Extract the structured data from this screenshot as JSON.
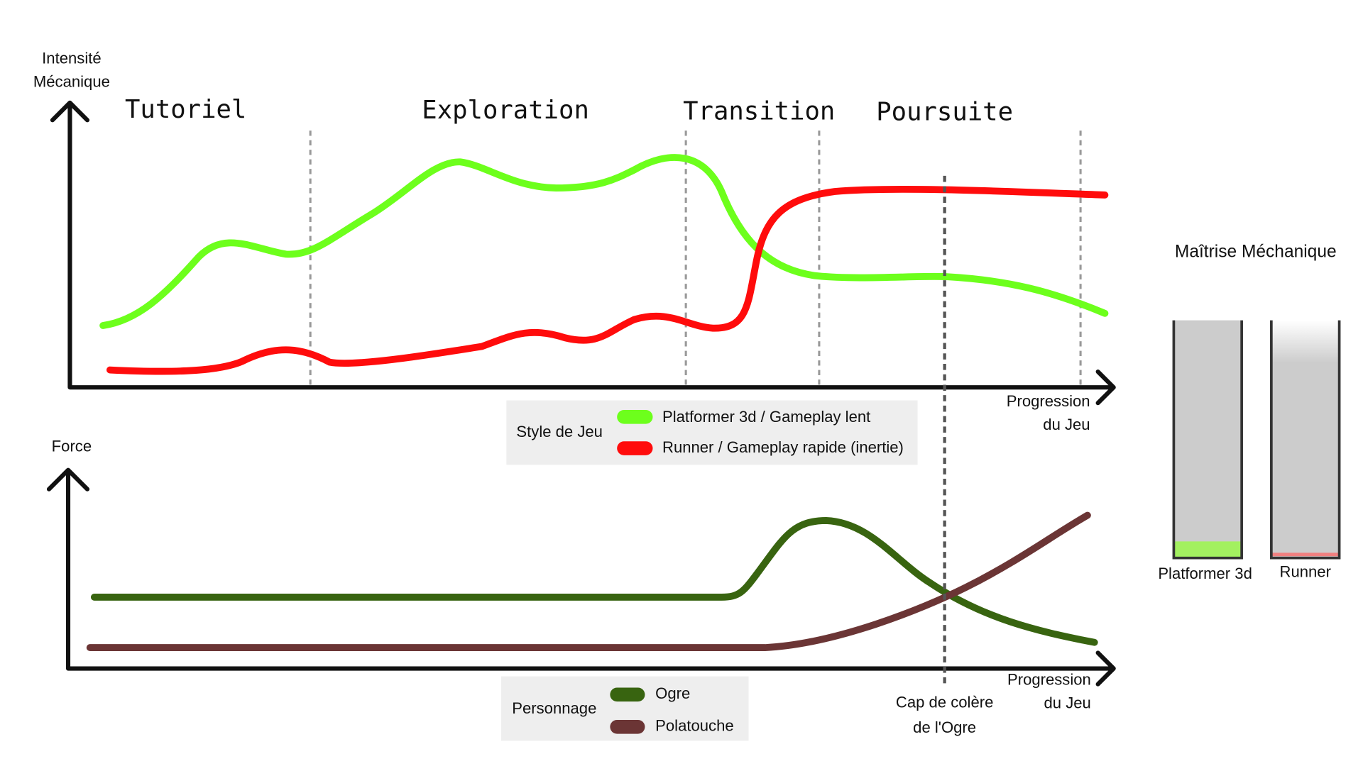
{
  "top_chart": {
    "y_label": [
      "Intensité",
      "Mécanique"
    ],
    "x_label": [
      "Progression",
      "du Jeu"
    ],
    "phases": [
      "Tutoriel",
      "Exploration",
      "Transition",
      "Poursuite"
    ],
    "legend": {
      "title": "Style de Jeu",
      "items": [
        "Platformer 3d / Gameplay lent",
        "Runner / Gameplay rapide (inertie)"
      ]
    }
  },
  "bottom_chart": {
    "y_label": "Force",
    "x_label": [
      "Progression",
      "du Jeu"
    ],
    "legend": {
      "title": "Personnage",
      "items": [
        "Ogre",
        "Polatouche"
      ]
    }
  },
  "marker_label": [
    "Cap de colère",
    "de l'Ogre"
  ],
  "mastery": {
    "title": "Maîtrise Méchanique",
    "bars": [
      "Platformer 3d",
      "Runner"
    ]
  }
}
